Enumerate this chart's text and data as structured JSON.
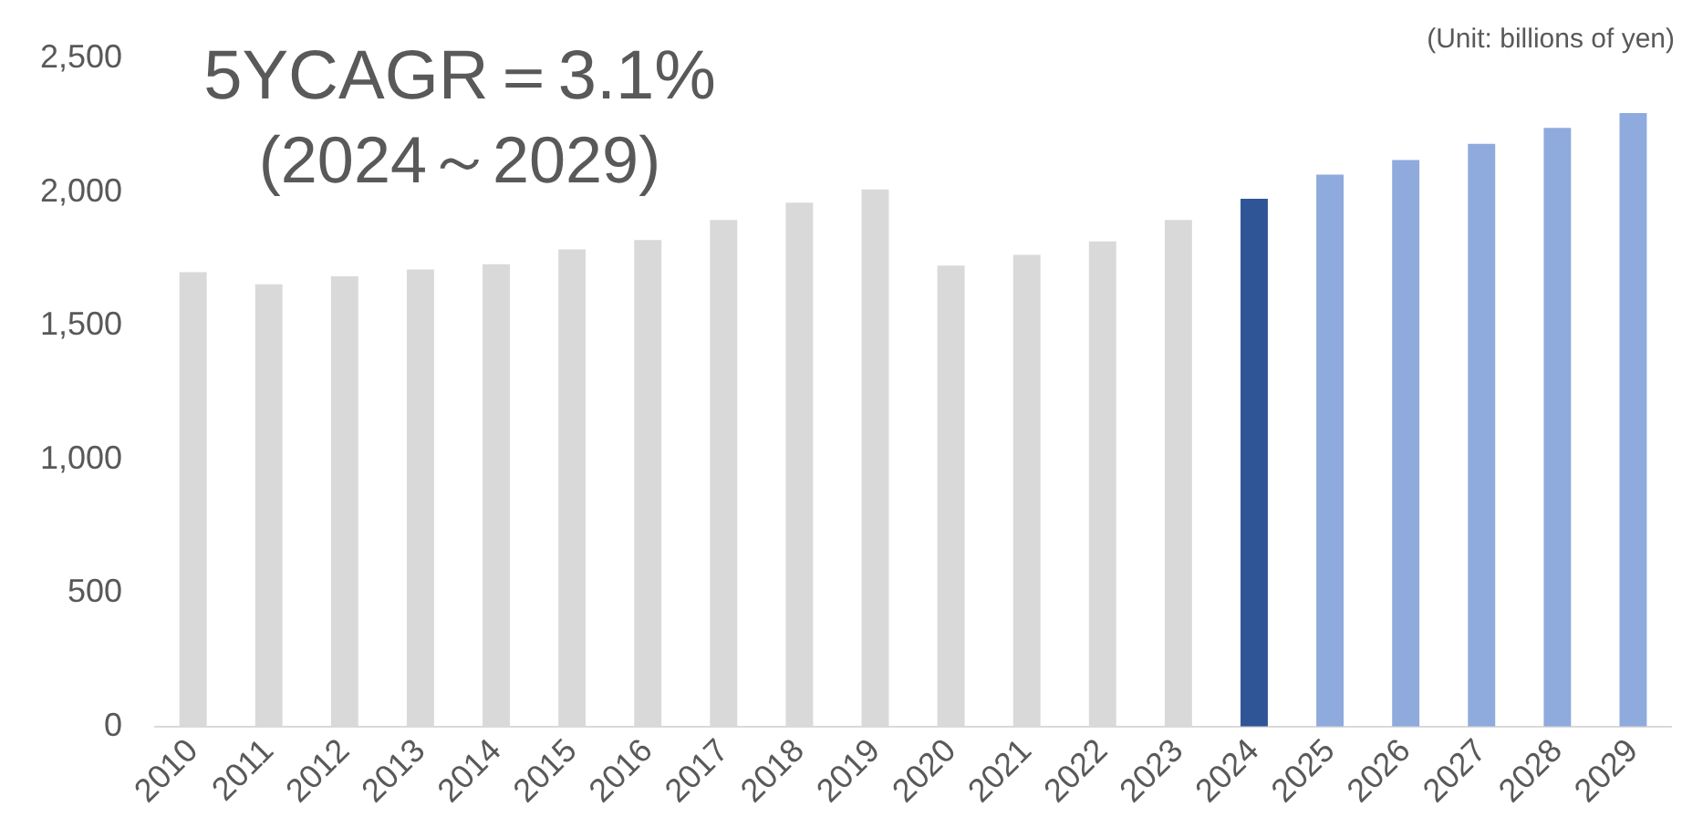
{
  "chart_data": {
    "type": "bar",
    "categories": [
      "2010",
      "2011",
      "2012",
      "2013",
      "2014",
      "2015",
      "2016",
      "2017",
      "2018",
      "2019",
      "2020",
      "2021",
      "2022",
      "2023",
      "2024",
      "2025",
      "2026",
      "2027",
      "2028",
      "2029"
    ],
    "values": [
      1700,
      1655,
      1685,
      1710,
      1730,
      1785,
      1820,
      1895,
      1960,
      2010,
      1725,
      1765,
      1815,
      1895,
      1975,
      2065,
      2120,
      2180,
      2240,
      2295
    ],
    "colors": [
      "#d9d9d9",
      "#d9d9d9",
      "#d9d9d9",
      "#d9d9d9",
      "#d9d9d9",
      "#d9d9d9",
      "#d9d9d9",
      "#d9d9d9",
      "#d9d9d9",
      "#d9d9d9",
      "#d9d9d9",
      "#d9d9d9",
      "#d9d9d9",
      "#d9d9d9",
      "#2f5597",
      "#8faadc",
      "#8faadc",
      "#8faadc",
      "#8faadc",
      "#8faadc"
    ],
    "ylim": [
      0,
      2500
    ],
    "yticks": [
      0,
      {
        "value": 500,
        "label": "500"
      },
      {
        "value": 1000,
        "label": "1,000"
      },
      {
        "value": 1500,
        "label": "1,500"
      },
      {
        "value": 2000,
        "label": "2,000"
      },
      {
        "value": 2500,
        "label": "2,500"
      }
    ],
    "grid": false,
    "legend": false,
    "annotations": [
      "5YCAGR＝3.1%",
      "(2024～2029)",
      "(Unit: billions of yen)"
    ]
  }
}
